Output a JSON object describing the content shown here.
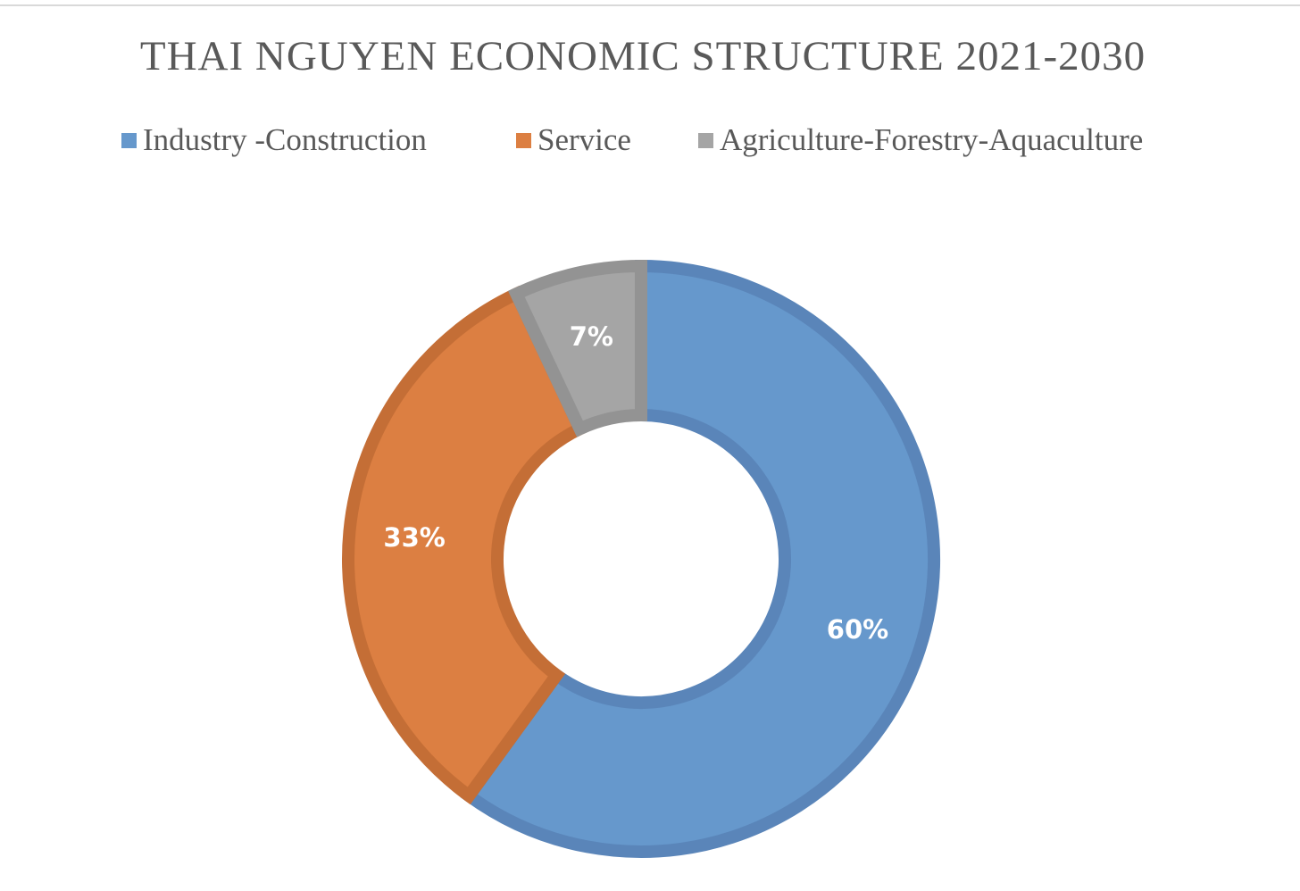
{
  "chart_data": {
    "type": "pie",
    "variant": "donut",
    "title": "THAI NGUYEN ECONOMIC STRUCTURE 2021-2030",
    "legend_position": "top",
    "categories": [
      "Industry -Construction",
      "Service",
      "Agriculture-Forestry-Aquaculture"
    ],
    "values": [
      60,
      33,
      7
    ],
    "data_labels": [
      "60%",
      "33%",
      "7%"
    ],
    "colors": [
      "#6698cc",
      "#dc7f42",
      "#a5a5a5"
    ],
    "border_colors": [
      "#5a85b9",
      "#c46e36",
      "#939393"
    ]
  }
}
